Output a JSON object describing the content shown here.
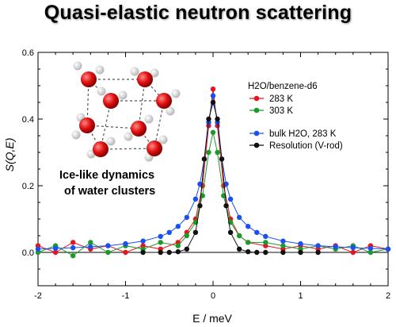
{
  "title": "Quasi-elastic neutron scattering",
  "annotation": {
    "line1": "Ice-like dynamics",
    "line2": "of water clusters"
  },
  "chart_data": {
    "type": "scatter",
    "xlabel": "E / meV",
    "ylabel": "S(Q,E)",
    "xlim": [
      -2,
      2
    ],
    "ylim": [
      -0.1,
      0.6
    ],
    "x_ticks": [
      "-2",
      "-1",
      "0",
      "1",
      "2"
    ],
    "y_ticks": [
      "0.0",
      "0.2",
      "0.4",
      "0.6"
    ],
    "legend": {
      "group_title": "H2O/benzene-d6",
      "placement": "top-right",
      "entries": [
        "283 K",
        "303 K",
        "bulk H2O, 283 K",
        "Resolution (V-rod)"
      ]
    },
    "series": [
      {
        "name": "283 K",
        "color": "#e8141b",
        "points": [
          [
            -2.0,
            0.02
          ],
          [
            -1.8,
            0.0
          ],
          [
            -1.6,
            0.03
          ],
          [
            -1.4,
            0.01
          ],
          [
            -1.2,
            0.02
          ],
          [
            -1.0,
            0.0
          ],
          [
            -0.8,
            0.02
          ],
          [
            -0.6,
            0.01
          ],
          [
            -0.4,
            0.03
          ],
          [
            -0.3,
            0.06
          ],
          [
            -0.2,
            0.1
          ],
          [
            -0.12,
            0.2
          ],
          [
            -0.05,
            0.38
          ],
          [
            0.0,
            0.49
          ],
          [
            0.05,
            0.38
          ],
          [
            0.12,
            0.2
          ],
          [
            0.2,
            0.1
          ],
          [
            0.3,
            0.05
          ],
          [
            0.4,
            0.03
          ],
          [
            0.6,
            0.02
          ],
          [
            0.8,
            0.01
          ],
          [
            1.0,
            0.02
          ],
          [
            1.2,
            0.01
          ],
          [
            1.4,
            0.02
          ],
          [
            1.6,
            0.0
          ],
          [
            1.8,
            0.02
          ],
          [
            2.0,
            0.01
          ]
        ]
      },
      {
        "name": "303 K",
        "color": "#1a9a2a",
        "points": [
          [
            -2.0,
            0.0
          ],
          [
            -1.8,
            0.02
          ],
          [
            -1.6,
            -0.01
          ],
          [
            -1.4,
            0.03
          ],
          [
            -1.2,
            0.0
          ],
          [
            -1.0,
            0.02
          ],
          [
            -0.8,
            0.01
          ],
          [
            -0.6,
            0.03
          ],
          [
            -0.4,
            0.02
          ],
          [
            -0.3,
            0.05
          ],
          [
            -0.2,
            0.09
          ],
          [
            -0.12,
            0.17
          ],
          [
            -0.05,
            0.3
          ],
          [
            0.0,
            0.36
          ],
          [
            0.05,
            0.3
          ],
          [
            0.12,
            0.17
          ],
          [
            0.2,
            0.09
          ],
          [
            0.3,
            0.05
          ],
          [
            0.4,
            0.03
          ],
          [
            0.6,
            0.03
          ],
          [
            0.8,
            0.02
          ],
          [
            1.0,
            0.01
          ],
          [
            1.2,
            0.02
          ],
          [
            1.4,
            0.01
          ],
          [
            1.6,
            0.02
          ],
          [
            1.8,
            0.0
          ],
          [
            2.0,
            0.01
          ]
        ]
      },
      {
        "name": "bulk H2O, 283 K",
        "color": "#1a4ff0",
        "points": [
          [
            -2.0,
            0.01
          ],
          [
            -1.8,
            0.012
          ],
          [
            -1.6,
            0.014
          ],
          [
            -1.4,
            0.017
          ],
          [
            -1.2,
            0.02
          ],
          [
            -1.0,
            0.026
          ],
          [
            -0.8,
            0.034
          ],
          [
            -0.6,
            0.048
          ],
          [
            -0.5,
            0.06
          ],
          [
            -0.4,
            0.078
          ],
          [
            -0.3,
            0.105
          ],
          [
            -0.2,
            0.16
          ],
          [
            -0.15,
            0.205
          ],
          [
            -0.1,
            0.28
          ],
          [
            -0.05,
            0.39
          ],
          [
            0.0,
            0.47
          ],
          [
            0.05,
            0.39
          ],
          [
            0.1,
            0.28
          ],
          [
            0.15,
            0.205
          ],
          [
            0.2,
            0.16
          ],
          [
            0.3,
            0.105
          ],
          [
            0.4,
            0.078
          ],
          [
            0.5,
            0.06
          ],
          [
            0.6,
            0.048
          ],
          [
            0.8,
            0.034
          ],
          [
            1.0,
            0.026
          ],
          [
            1.2,
            0.02
          ],
          [
            1.4,
            0.017
          ],
          [
            1.6,
            0.014
          ],
          [
            1.8,
            0.012
          ],
          [
            2.0,
            0.01
          ]
        ]
      },
      {
        "name": "Resolution (V-rod)",
        "color": "#111111",
        "points": [
          [
            -0.8,
            0.0
          ],
          [
            -0.6,
            0.0
          ],
          [
            -0.5,
            0.0
          ],
          [
            -0.4,
            0.002
          ],
          [
            -0.3,
            0.01
          ],
          [
            -0.2,
            0.06
          ],
          [
            -0.15,
            0.14
          ],
          [
            -0.1,
            0.28
          ],
          [
            -0.05,
            0.4
          ],
          [
            0.0,
            0.45
          ],
          [
            0.05,
            0.4
          ],
          [
            0.1,
            0.28
          ],
          [
            0.15,
            0.14
          ],
          [
            0.2,
            0.06
          ],
          [
            0.3,
            0.01
          ],
          [
            0.4,
            0.002
          ],
          [
            0.5,
            0.0
          ],
          [
            0.6,
            0.0
          ],
          [
            0.8,
            0.0
          ],
          [
            1.0,
            0.0
          ],
          [
            1.2,
            0.0
          ]
        ]
      }
    ]
  }
}
